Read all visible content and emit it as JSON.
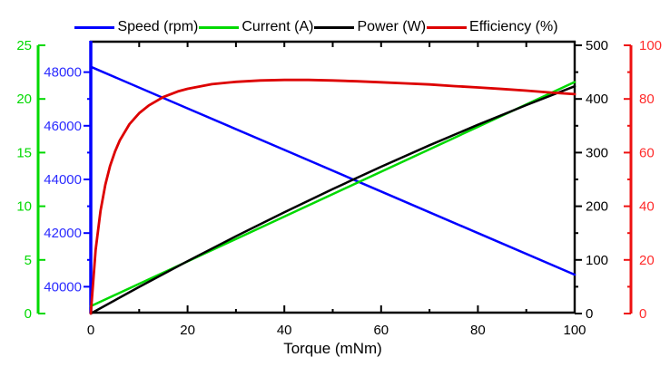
{
  "legend": {
    "items": [
      {
        "label": "Speed (rpm)",
        "color": "#0000ff"
      },
      {
        "label": "Current (A)",
        "color": "#00d900"
      },
      {
        "label": "Power (W)",
        "color": "#000000"
      },
      {
        "label": "Efficiency (%)",
        "color": "#dd0000"
      }
    ]
  },
  "chart_data": {
    "type": "line",
    "title": "",
    "xlabel": "Torque (mNm)",
    "background": "#ffffff",
    "grid": false,
    "legend_position": "top",
    "x_axis": {
      "min": 0,
      "max": 100,
      "color": "#000000",
      "label_color": "#000000",
      "major_ticks": [
        {
          "value": 0,
          "label": "0"
        },
        {
          "value": 20,
          "label": "20"
        },
        {
          "value": 40,
          "label": "40"
        },
        {
          "value": 60,
          "label": "60"
        },
        {
          "value": 80,
          "label": "80"
        },
        {
          "value": 100,
          "label": "100"
        }
      ],
      "minor_ticks": [
        10,
        30,
        50,
        70,
        90
      ],
      "top_ticks": [
        10,
        20,
        30,
        40,
        50,
        60,
        70,
        80,
        90
      ]
    },
    "y_axes": [
      {
        "id": "current",
        "label": "Current (A)",
        "side": "outer-left",
        "color": "#00d900",
        "label_color": "#00d900",
        "min": 0,
        "max": 25,
        "major_ticks": [
          {
            "value": 0,
            "label": "0"
          },
          {
            "value": 5,
            "label": "5"
          },
          {
            "value": 10,
            "label": "10"
          },
          {
            "value": 15,
            "label": "15"
          },
          {
            "value": 20,
            "label": "20"
          },
          {
            "value": 25,
            "label": "25"
          }
        ],
        "minor_ticks": []
      },
      {
        "id": "speed",
        "label": "Speed (rpm)",
        "side": "left",
        "color": "#0000ff",
        "label_color": "#2a2aff",
        "min": 39000,
        "max": 49000,
        "major_ticks": [
          {
            "value": 40000,
            "label": "40000"
          },
          {
            "value": 42000,
            "label": "42000"
          },
          {
            "value": 44000,
            "label": "44000"
          },
          {
            "value": 46000,
            "label": "46000"
          },
          {
            "value": 48000,
            "label": "48000"
          }
        ],
        "minor_ticks": [
          41000,
          43000,
          45000,
          47000
        ]
      },
      {
        "id": "power",
        "label": "Power (W)",
        "side": "right",
        "color": "#000000",
        "label_color": "#000000",
        "min": 0,
        "max": 500,
        "major_ticks": [
          {
            "value": 0,
            "label": "0"
          },
          {
            "value": 100,
            "label": "100"
          },
          {
            "value": 200,
            "label": "200"
          },
          {
            "value": 300,
            "label": "300"
          },
          {
            "value": 400,
            "label": "400"
          },
          {
            "value": 500,
            "label": "500"
          }
        ],
        "minor_ticks": [
          50,
          150,
          250,
          350,
          450
        ]
      },
      {
        "id": "efficiency",
        "label": "Efficiency (%)",
        "side": "outer-right",
        "color": "#ee1111",
        "label_color": "#ff2a2a",
        "min": 0,
        "max": 100,
        "major_ticks": [
          {
            "value": 0,
            "label": "0"
          },
          {
            "value": 20,
            "label": "20"
          },
          {
            "value": 40,
            "label": "40"
          },
          {
            "value": 60,
            "label": "60"
          },
          {
            "value": 80,
            "label": "80"
          },
          {
            "value": 100,
            "label": "100"
          }
        ],
        "minor_ticks": [
          10,
          30,
          50,
          70,
          90
        ]
      }
    ],
    "series": [
      {
        "name": "Speed (rpm)",
        "axis": "speed",
        "color": "#0000ff",
        "width": 2.5,
        "x": [
          0,
          20,
          40,
          60,
          80,
          100
        ],
        "y": [
          48200,
          46650,
          45100,
          43550,
          42000,
          40450
        ]
      },
      {
        "name": "Current (A)",
        "axis": "current",
        "color": "#00d900",
        "width": 2.5,
        "x": [
          0,
          20,
          40,
          60,
          80,
          100
        ],
        "y": [
          0.68,
          4.86,
          9.04,
          13.22,
          17.4,
          21.58
        ]
      },
      {
        "name": "Power (W)",
        "axis": "power",
        "color": "#000000",
        "width": 2.5,
        "x": [
          0,
          10,
          20,
          30,
          40,
          50,
          60,
          70,
          80,
          90,
          100
        ],
        "y": [
          0,
          49.7,
          97.7,
          144.1,
          188.9,
          232.1,
          273.6,
          313.6,
          351.9,
          388.5,
          423.6
        ]
      },
      {
        "name": "Efficiency (%)",
        "axis": "efficiency",
        "color": "#dd0000",
        "width": 2.8,
        "x": [
          0,
          1,
          2,
          3,
          4,
          5,
          6,
          8,
          10,
          12,
          15,
          18,
          20,
          25,
          30,
          35,
          40,
          45,
          50,
          55,
          60,
          65,
          70,
          75,
          80,
          85,
          90,
          95,
          100
        ],
        "y": [
          0,
          23.6,
          38.2,
          48.0,
          55.1,
          60.4,
          64.6,
          70.6,
          74.7,
          77.6,
          80.7,
          82.8,
          83.8,
          85.5,
          86.4,
          86.9,
          87.1,
          87.1,
          86.9,
          86.6,
          86.2,
          85.8,
          85.4,
          84.8,
          84.3,
          83.7,
          83.1,
          82.4,
          81.8
        ]
      }
    ]
  }
}
